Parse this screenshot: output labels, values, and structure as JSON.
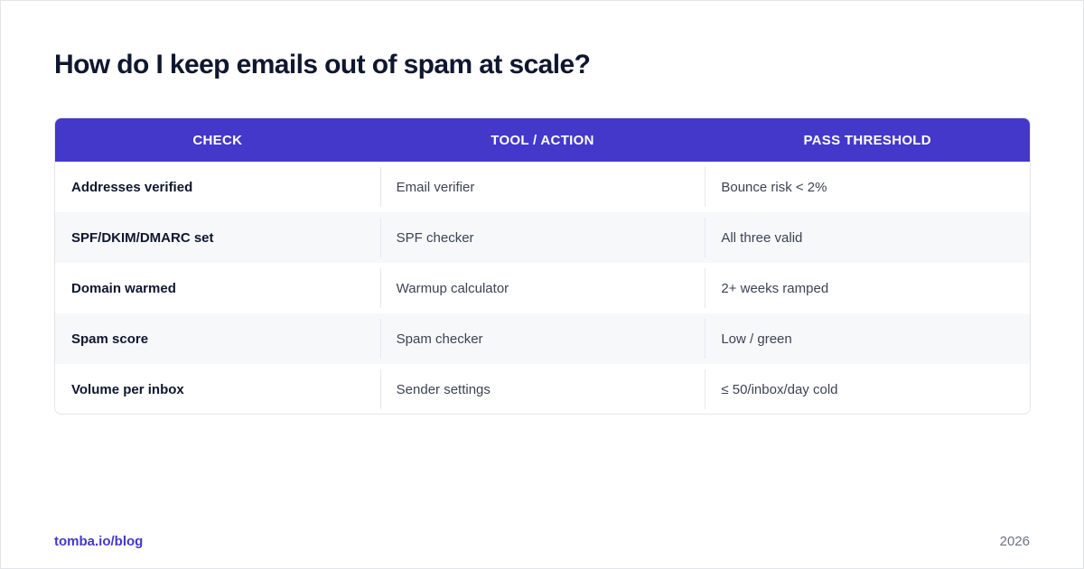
{
  "title": "How do I keep emails out of spam at scale?",
  "table": {
    "headers": [
      "CHECK",
      "TOOL / ACTION",
      "PASS THRESHOLD"
    ],
    "rows": [
      {
        "check": "Addresses verified",
        "tool": "Email verifier",
        "threshold": "Bounce risk < 2%"
      },
      {
        "check": "SPF/DKIM/DMARC set",
        "tool": "SPF checker",
        "threshold": "All three valid"
      },
      {
        "check": "Domain warmed",
        "tool": "Warmup calculator",
        "threshold": "2+ weeks ramped"
      },
      {
        "check": "Spam score",
        "tool": "Spam checker",
        "threshold": "Low / green"
      },
      {
        "check": "Volume per inbox",
        "tool": "Sender settings",
        "threshold": "≤ 50/inbox/day cold"
      }
    ]
  },
  "footer": {
    "link": "tomba.io/blog",
    "year": "2026"
  },
  "colors": {
    "accent": "#4338ca",
    "title": "#0f1730",
    "row_alt": "#f7f8fa"
  }
}
